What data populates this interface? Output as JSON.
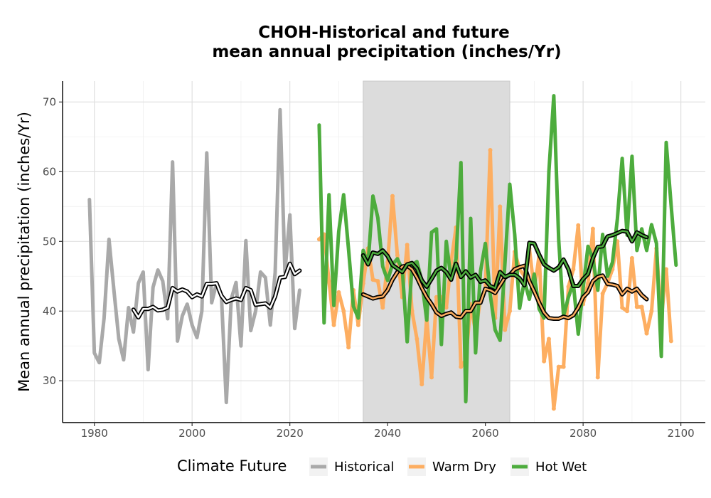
{
  "chart_data": {
    "type": "line",
    "title_line1": "CHOH-Historical and future",
    "title_line2": "mean annual precipitation (inches/Yr)",
    "xlabel": "",
    "ylabel": "Mean annual precipitation (inches/Yr)",
    "xlim": [
      1973.5,
      2105
    ],
    "ylim": [
      24,
      73
    ],
    "x_ticks": [
      1980,
      2000,
      2020,
      2040,
      2060,
      2080,
      2100
    ],
    "y_ticks": [
      30,
      40,
      50,
      60,
      70
    ],
    "grid": true,
    "shaded_period": [
      2035,
      2065
    ],
    "legend_title": "Climate Future",
    "legend_position": "bottom",
    "series": [
      {
        "name": "Historical",
        "color": "#a9a9a9",
        "start_year": 1979,
        "values": [
          56.0,
          34.0,
          32.6,
          39.0,
          50.3,
          43.0,
          36.0,
          33.0,
          40.5,
          37.0,
          44.0,
          45.6,
          31.6,
          43.4,
          45.9,
          44.3,
          38.9,
          61.4,
          35.7,
          39.3,
          41.0,
          38.0,
          36.2,
          40.0,
          62.7,
          41.2,
          44.0,
          42.3,
          26.9,
          41.7,
          44.1,
          35.0,
          50.1,
          37.2,
          40.0,
          45.6,
          44.8,
          38.0,
          45.5,
          68.9,
          45.6,
          53.8,
          37.5,
          43.0
        ],
        "moving_average_start_year": 1988,
        "moving_average": [
          40.2,
          39.1,
          40.3,
          40.3,
          40.6,
          40.1,
          40.2,
          40.5,
          43.3,
          42.8,
          43.1,
          42.8,
          42.0,
          42.4,
          42.1,
          43.9,
          43.9,
          44.0,
          42.2,
          41.3,
          41.6,
          41.8,
          41.6,
          43.3,
          43.0,
          40.9,
          41.0,
          41.1,
          40.5,
          42.1,
          44.8,
          44.9,
          46.8,
          45.3,
          45.8
        ]
      },
      {
        "name": "Warm Dry",
        "color": "#fdae61",
        "start_year": 2026,
        "values": [
          50.3,
          51.0,
          44.3,
          38.0,
          42.7,
          40.0,
          34.8,
          43.0,
          38.0,
          44.0,
          49.0,
          44.5,
          44.3,
          40.5,
          47.0,
          56.5,
          48.0,
          42.0,
          49.5,
          40.0,
          36.0,
          29.5,
          39.0,
          30.5,
          42.0,
          42.0,
          40.5,
          47.0,
          52.0,
          32.0,
          33.0,
          41.0,
          37.0,
          41.8,
          43.0,
          63.1,
          39.0,
          55.0,
          37.3,
          40.0,
          48.5,
          46.0,
          45.0,
          49.0,
          43.0,
          48.0,
          32.8,
          36.0,
          26.0,
          32.0,
          32.0,
          43.5,
          46.0,
          52.3,
          41.0,
          44.0,
          51.8,
          30.5,
          42.5,
          44.0,
          46.0,
          50.0,
          40.5,
          40.0,
          47.6,
          40.6,
          40.6,
          36.8,
          40.0,
          49.0,
          38.8,
          46.0,
          35.7
        ],
        "moving_average_start_year": 2035,
        "moving_average": [
          42.4,
          42.1,
          41.8,
          42.0,
          42.1,
          43.0,
          44.5,
          45.6,
          46.4,
          46.5,
          46.0,
          44.8,
          43.3,
          42.0,
          41.0,
          39.8,
          39.3,
          39.6,
          39.8,
          39.2,
          39.1,
          40.0,
          40.0,
          41.2,
          41.2,
          43.2,
          43.0,
          42.6,
          43.7,
          44.8,
          45.2,
          46.0,
          46.3,
          46.5,
          44.3,
          42.8,
          41.2,
          39.8,
          39.0,
          38.9,
          38.9,
          39.2,
          39.0,
          39.4,
          40.5,
          42.0,
          42.7,
          44.3,
          44.9,
          45.1,
          43.9,
          43.8,
          43.6,
          42.4,
          43.2,
          42.8,
          43.2,
          42.3,
          41.7
        ]
      },
      {
        "name": "Hot Wet",
        "color": "#4dac3d",
        "start_year": 2026,
        "values": [
          66.7,
          38.3,
          56.7,
          40.8,
          51.4,
          56.7,
          48.9,
          40.7,
          39.0,
          48.7,
          46.8,
          56.5,
          53.4,
          46.4,
          44.4,
          46.7,
          47.5,
          46.0,
          35.6,
          46.6,
          47.1,
          44.3,
          38.7,
          51.3,
          51.8,
          35.2,
          50.0,
          44.5,
          47.5,
          61.3,
          27.0,
          53.3,
          34.0,
          45.7,
          49.7,
          42.4,
          37.3,
          35.8,
          46.7,
          58.2,
          51.0,
          40.4,
          44.4,
          41.7,
          45.3,
          40.3,
          39.0,
          60.0,
          70.9,
          50.2,
          39.3,
          42.0,
          44.0,
          36.7,
          43.2,
          49.3,
          47.5,
          43.0,
          51.0,
          45.0,
          47.0,
          53.2,
          61.9,
          50.9,
          62.2,
          48.7,
          51.8,
          48.7,
          52.4,
          49.7,
          33.5,
          64.2,
          55.2,
          46.6
        ],
        "moving_average_start_year": 2035,
        "moving_average": [
          48.0,
          46.7,
          48.4,
          48.2,
          48.7,
          47.9,
          46.6,
          46.1,
          45.6,
          46.7,
          46.9,
          46.1,
          44.4,
          43.5,
          44.6,
          45.8,
          46.2,
          45.6,
          44.5,
          46.8,
          44.9,
          45.7,
          44.8,
          45.2,
          44.2,
          44.4,
          43.6,
          43.3,
          45.6,
          44.9,
          45.2,
          45.2,
          44.7,
          43.7,
          49.8,
          49.7,
          48.1,
          46.7,
          46.2,
          45.8,
          46.3,
          47.4,
          46.0,
          43.6,
          43.6,
          44.6,
          45.3,
          47.6,
          49.2,
          49.3,
          50.7,
          50.9,
          51.2,
          51.5,
          51.4,
          50.0,
          51.3,
          50.9,
          50.6
        ]
      }
    ]
  }
}
